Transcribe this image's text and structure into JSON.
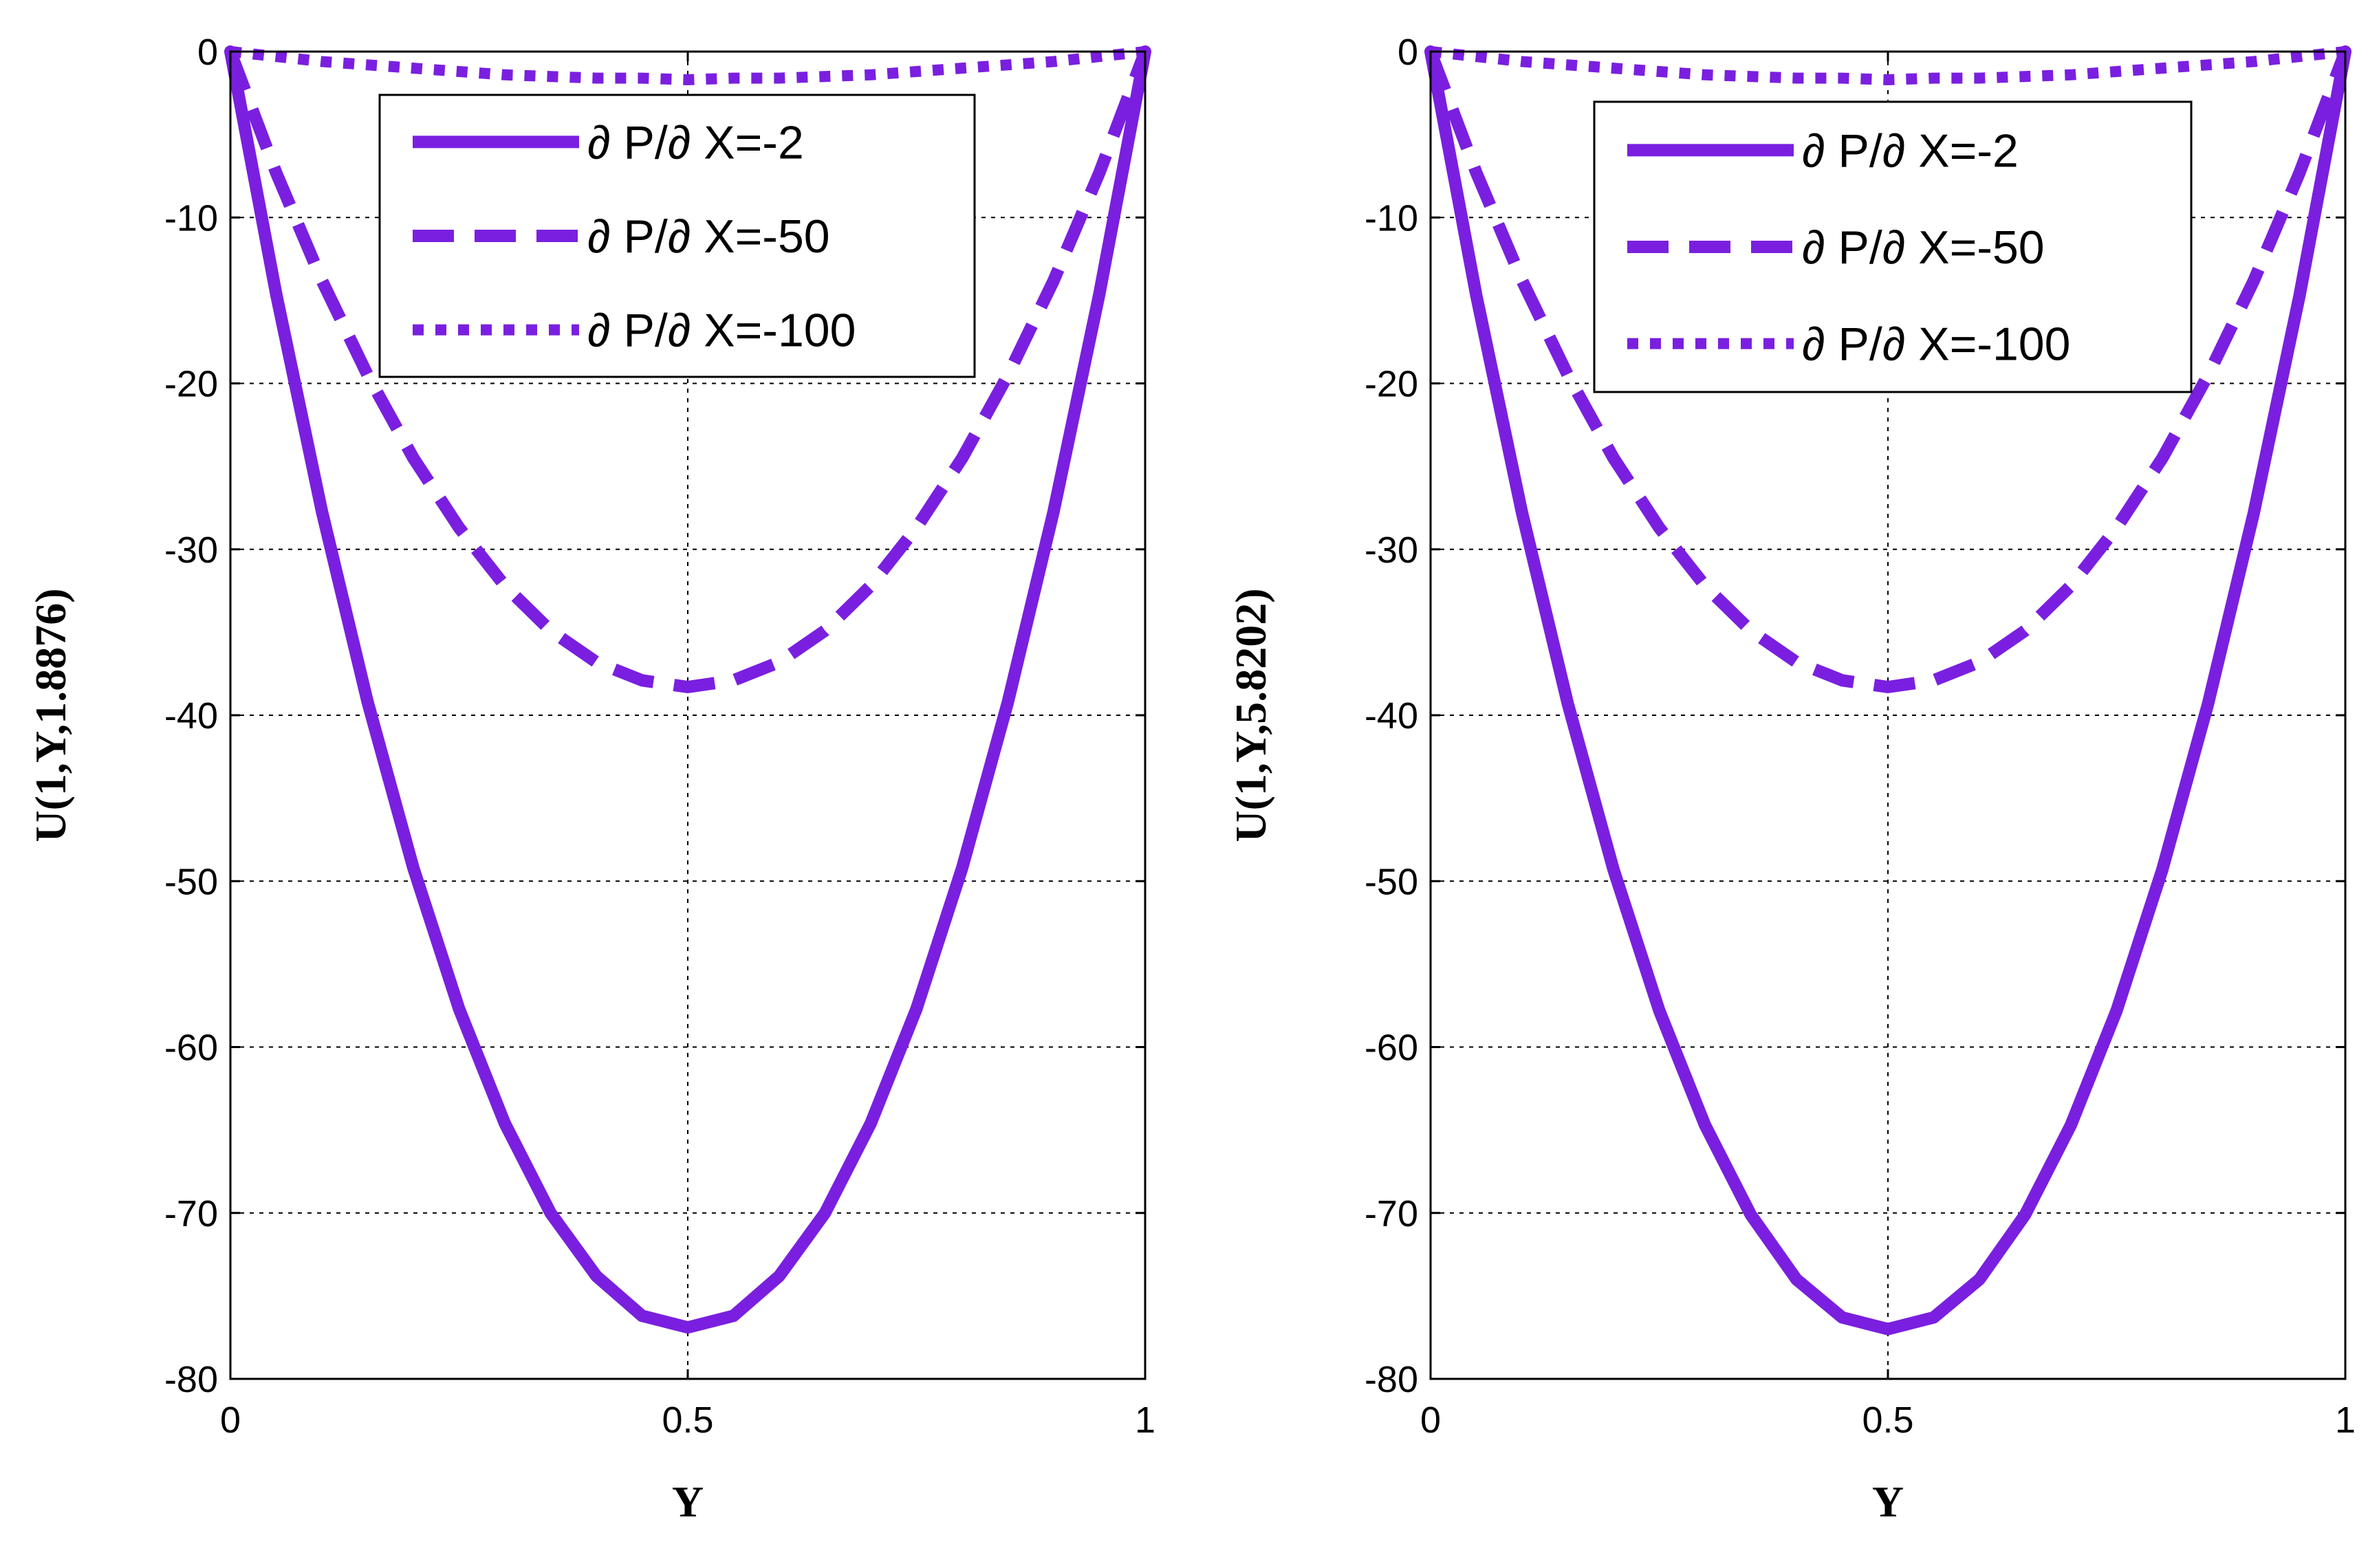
{
  "chart_data": [
    {
      "type": "line",
      "xlabel": "Y",
      "ylabel": "U(1,Y,1.8876)",
      "xlim": [
        0,
        1
      ],
      "ylim": [
        -80,
        0
      ],
      "xticks": [
        0,
        0.5,
        1
      ],
      "xtick_labels": [
        "0",
        "0.5",
        "1"
      ],
      "yticks": [
        0,
        -10,
        -20,
        -30,
        -40,
        -50,
        -60,
        -70,
        -80
      ],
      "ytick_labels": [
        "0",
        "-10",
        "-20",
        "-30",
        "-40",
        "-50",
        "-60",
        "-70",
        "-80"
      ],
      "grid": true,
      "legend_position": "top-center",
      "color": "#7a1fe0",
      "series": [
        {
          "name": "∂ P/∂ X=-2",
          "style": "solid",
          "x": [
            0,
            0.05,
            0.1,
            0.15,
            0.2,
            0.25,
            0.3,
            0.35,
            0.4,
            0.45,
            0.5,
            0.55,
            0.6,
            0.65,
            0.7,
            0.75,
            0.8,
            0.85,
            0.9,
            0.95,
            1
          ],
          "y": [
            0,
            -14.6,
            -27.7,
            -39.2,
            -49.2,
            -57.7,
            -64.6,
            -70.0,
            -73.8,
            -76.2,
            -76.9,
            -76.2,
            -73.8,
            -70.0,
            -64.6,
            -57.7,
            -49.2,
            -39.2,
            -27.7,
            -14.6,
            0
          ]
        },
        {
          "name": "∂ P/∂ X=-50",
          "style": "dashed",
          "x": [
            0,
            0.05,
            0.1,
            0.15,
            0.2,
            0.25,
            0.3,
            0.35,
            0.4,
            0.45,
            0.5,
            0.55,
            0.6,
            0.65,
            0.7,
            0.75,
            0.8,
            0.85,
            0.9,
            0.95,
            1
          ],
          "y": [
            0,
            -7.3,
            -13.8,
            -19.5,
            -24.5,
            -28.7,
            -32.2,
            -34.9,
            -36.8,
            -37.9,
            -38.3,
            -37.9,
            -36.8,
            -34.9,
            -32.2,
            -28.7,
            -24.5,
            -19.5,
            -13.8,
            -7.3,
            0
          ]
        },
        {
          "name": "∂ P/∂ X=-100",
          "style": "dotted",
          "x": [
            0,
            0.05,
            0.1,
            0.15,
            0.2,
            0.25,
            0.3,
            0.35,
            0.4,
            0.45,
            0.5,
            0.55,
            0.6,
            0.65,
            0.7,
            0.75,
            0.8,
            0.85,
            0.9,
            0.95,
            1
          ],
          "y": [
            0,
            -0.3,
            -0.6,
            -0.8,
            -1.0,
            -1.2,
            -1.4,
            -1.5,
            -1.6,
            -1.6,
            -1.7,
            -1.6,
            -1.6,
            -1.5,
            -1.4,
            -1.2,
            -1.0,
            -0.8,
            -0.6,
            -0.3,
            0
          ]
        }
      ]
    },
    {
      "type": "line",
      "xlabel": "Y",
      "ylabel": "U(1,Y,5.8202)",
      "xlim": [
        0,
        1
      ],
      "ylim": [
        -80,
        0
      ],
      "xticks": [
        0,
        0.5,
        1
      ],
      "xtick_labels": [
        "0",
        "0.5",
        "1"
      ],
      "yticks": [
        0,
        -10,
        -20,
        -30,
        -40,
        -50,
        -60,
        -70,
        -80
      ],
      "ytick_labels": [
        "0",
        "-10",
        "-20",
        "-30",
        "-40",
        "-50",
        "-60",
        "-70",
        "-80"
      ],
      "grid": true,
      "legend_position": "top-center",
      "color": "#7a1fe0",
      "series": [
        {
          "name": "∂ P/∂ X=-2",
          "style": "solid",
          "x": [
            0,
            0.05,
            0.1,
            0.15,
            0.2,
            0.25,
            0.3,
            0.35,
            0.4,
            0.45,
            0.5,
            0.55,
            0.6,
            0.65,
            0.7,
            0.75,
            0.8,
            0.85,
            0.9,
            0.95,
            1
          ],
          "y": [
            0,
            -14.7,
            -27.8,
            -39.3,
            -49.3,
            -57.8,
            -64.7,
            -70.1,
            -74.0,
            -76.3,
            -77.0,
            -76.3,
            -74.0,
            -70.1,
            -64.7,
            -57.8,
            -49.3,
            -39.3,
            -27.8,
            -14.7,
            0
          ]
        },
        {
          "name": "∂ P/∂ X=-50",
          "style": "dashed",
          "x": [
            0,
            0.05,
            0.1,
            0.15,
            0.2,
            0.25,
            0.3,
            0.35,
            0.4,
            0.45,
            0.5,
            0.55,
            0.6,
            0.65,
            0.7,
            0.75,
            0.8,
            0.85,
            0.9,
            0.95,
            1
          ],
          "y": [
            0,
            -7.3,
            -13.8,
            -19.5,
            -24.5,
            -28.7,
            -32.2,
            -34.9,
            -36.8,
            -37.9,
            -38.3,
            -37.9,
            -36.8,
            -34.9,
            -32.2,
            -28.7,
            -24.5,
            -19.5,
            -13.8,
            -7.3,
            0
          ]
        },
        {
          "name": "∂ P/∂ X=-100",
          "style": "dotted",
          "x": [
            0,
            0.05,
            0.1,
            0.15,
            0.2,
            0.25,
            0.3,
            0.35,
            0.4,
            0.45,
            0.5,
            0.55,
            0.6,
            0.65,
            0.7,
            0.75,
            0.8,
            0.85,
            0.9,
            0.95,
            1
          ],
          "y": [
            0,
            -0.3,
            -0.6,
            -0.8,
            -1.0,
            -1.2,
            -1.4,
            -1.5,
            -1.6,
            -1.6,
            -1.7,
            -1.6,
            -1.6,
            -1.5,
            -1.4,
            -1.2,
            -1.0,
            -0.8,
            -0.6,
            -0.3,
            0
          ]
        }
      ]
    }
  ]
}
